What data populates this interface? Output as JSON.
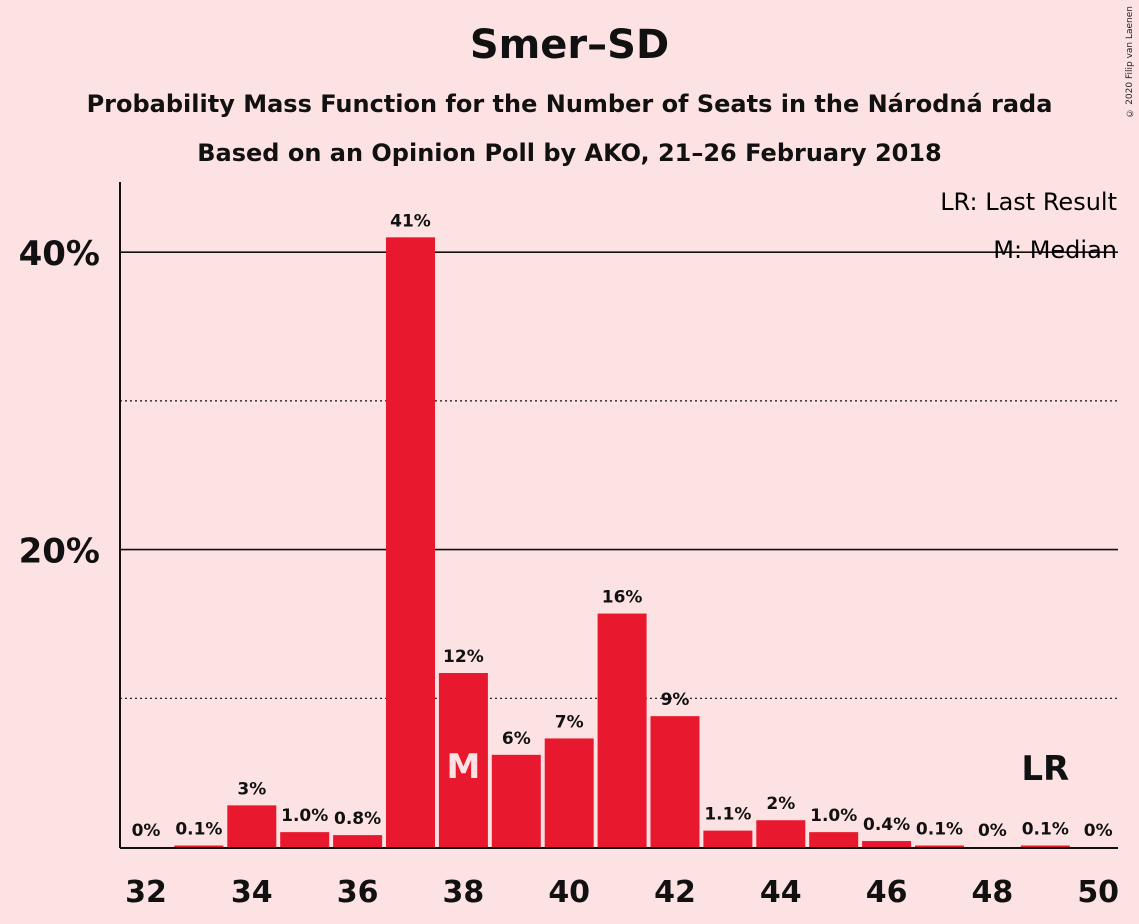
{
  "header": {
    "title": "Smer–SD",
    "subtitle1": "Probability Mass Function for the Number of Seats in the Národná rada",
    "subtitle2": "Based on an Opinion Poll by AKO, 21–26 February 2018",
    "copyright": "© 2020 Filip van Laenen"
  },
  "legend": {
    "last_result": "LR: Last Result",
    "median": "M: Median"
  },
  "colors": {
    "background": "#fde2e3",
    "bar": "#e8192f",
    "text": "#111111"
  },
  "chart_data": {
    "type": "bar",
    "x": [
      32,
      33,
      34,
      35,
      36,
      37,
      38,
      39,
      40,
      41,
      42,
      43,
      44,
      45,
      46,
      47,
      48,
      49,
      50
    ],
    "values": [
      0,
      0.1,
      2.8,
      1.0,
      0.8,
      41,
      11.7,
      6.2,
      7.3,
      15.7,
      8.8,
      1.1,
      1.8,
      1.0,
      0.4,
      0.1,
      0,
      0.1,
      0
    ],
    "labels": [
      "0%",
      "0.1%",
      "3%",
      "1.0%",
      "0.8%",
      "41%",
      "12%",
      "6%",
      "7%",
      "16%",
      "9%",
      "1.1%",
      "2%",
      "1.0%",
      "0.4%",
      "0.1%",
      "0%",
      "0.1%",
      "0%"
    ],
    "x_tick_labels": [
      "32",
      "34",
      "36",
      "38",
      "40",
      "42",
      "44",
      "46",
      "48",
      "50"
    ],
    "y_tick_labels": [
      "20%",
      "40%"
    ],
    "ylim": [
      0,
      45
    ],
    "median_seat": 38,
    "median_marker": "M",
    "last_result_seat": 49,
    "last_result_marker": "LR",
    "grid": "solid at 20% and 40%, dotted at 10% and 30%",
    "legend_placement": "top-right"
  }
}
